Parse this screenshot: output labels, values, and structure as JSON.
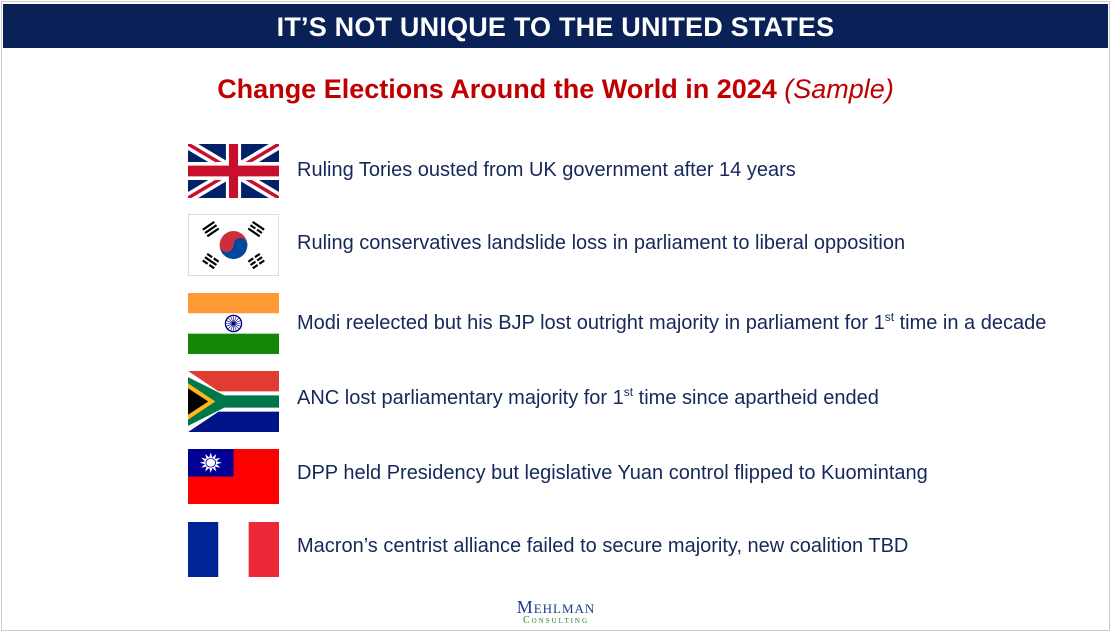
{
  "header": {
    "banner": "IT’S NOT UNIQUE TO THE UNITED STATES"
  },
  "title": {
    "main": "Change Elections Around the World in 2024",
    "sample": "(Sample)"
  },
  "rows": [
    {
      "flag": "uk-flag-icon",
      "text": "Ruling Tories ousted from UK government after 14 years"
    },
    {
      "flag": "south-korea-flag-icon",
      "text": "Ruling conservatives landslide loss in parliament to liberal opposition"
    },
    {
      "flag": "india-flag-icon",
      "pre": "Modi reelected but his BJP lost outright majority in parliament for 1",
      "sup": "st",
      "post": " time in a decade"
    },
    {
      "flag": "south-africa-flag-icon",
      "pre": "ANC lost parliamentary majority for 1",
      "sup": "st",
      "post": " time since apartheid ended"
    },
    {
      "flag": "taiwan-flag-icon",
      "text": "DPP held Presidency but legislative Yuan control flipped to Kuomintang"
    },
    {
      "flag": "france-flag-icon",
      "text": "Macron’s centrist alliance failed to secure majority, new coalition TBD"
    }
  ],
  "logo": {
    "line1": "Mehlman",
    "line2": "Consulting"
  },
  "colors": {
    "banner": "#0a2158",
    "title": "#c00000",
    "text": "#16285a"
  }
}
